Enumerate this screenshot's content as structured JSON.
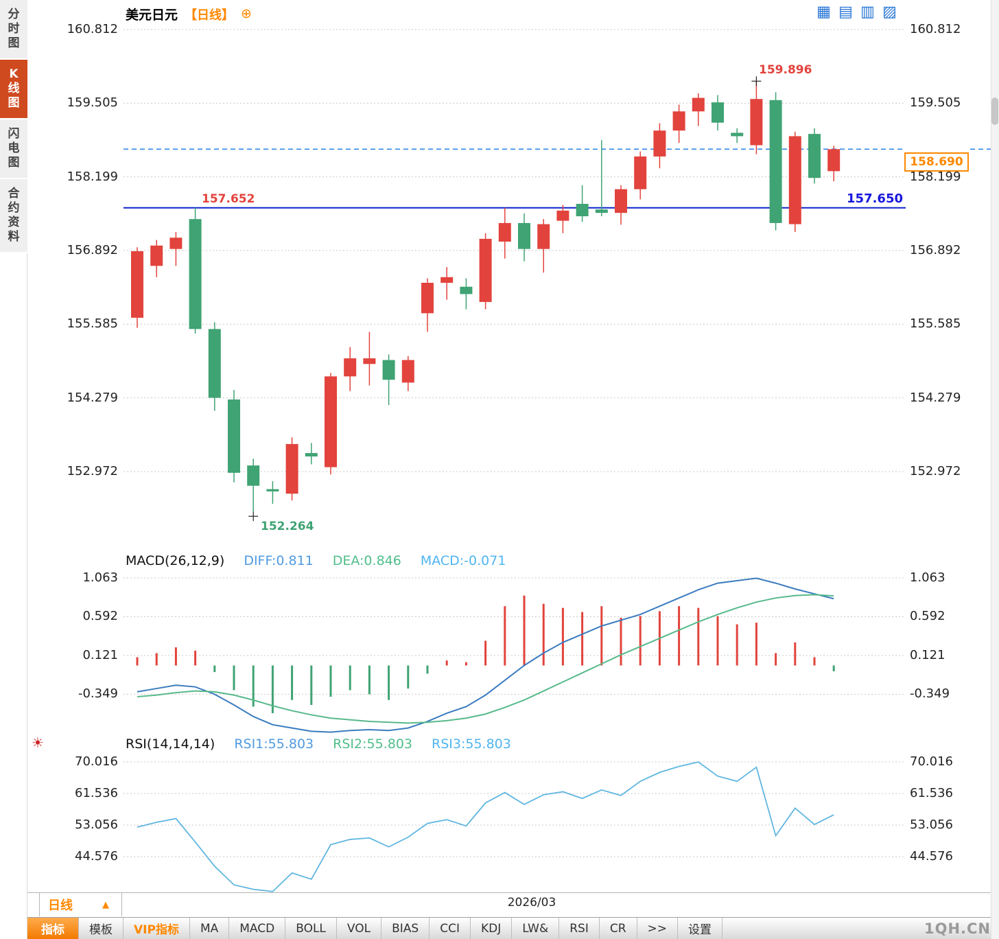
{
  "window": {
    "watermark": "1QH.CN"
  },
  "sidebar": {
    "items": [
      {
        "label": "分时图",
        "active": false
      },
      {
        "label": "K线图",
        "active": true
      },
      {
        "label": "闪电图",
        "active": false
      },
      {
        "label": "合约资料",
        "active": false
      }
    ]
  },
  "header": {
    "title": "美元日元",
    "period": "【日线】"
  },
  "top_icons": [
    "layout-grid-icon",
    "layout-bars-icon",
    "layout-panel-icon",
    "layout-split-icon"
  ],
  "axes": {
    "price": [
      "160.812",
      "159.505",
      "158.199",
      "156.892",
      "155.585",
      "154.279",
      "152.972"
    ],
    "macd": [
      "1.063",
      "0.592",
      "0.121",
      "-0.349"
    ],
    "rsi": [
      "70.016",
      "61.536",
      "53.056",
      "44.576"
    ]
  },
  "annotations": {
    "high": "159.896",
    "swing_high": "157.652",
    "low": "152.264",
    "last_tag": "158.690",
    "hline": "157.650"
  },
  "macd_header": {
    "title": "MACD(26,12,9)",
    "diff": "DIFF:0.811",
    "dea": "DEA:0.846",
    "macd": "MACD:-0.071"
  },
  "rsi_header": {
    "title": "RSI(14,14,14)",
    "rsi1": "RSI1:55.803",
    "rsi2": "RSI2:55.803",
    "rsi3": "RSI3:55.803"
  },
  "footer": {
    "period": "日线",
    "triangle": "▲",
    "date": "2026/03"
  },
  "toolbar": {
    "items": [
      {
        "label": "指标",
        "active": true
      },
      {
        "label": "模板"
      },
      {
        "label": "VIP指标",
        "vip": true
      },
      {
        "label": "MA"
      },
      {
        "label": "MACD"
      },
      {
        "label": "BOLL"
      },
      {
        "label": "VOL"
      },
      {
        "label": "BIAS"
      },
      {
        "label": "CCI"
      },
      {
        "label": "KDJ"
      },
      {
        "label": "LW&"
      },
      {
        "label": "RSI"
      },
      {
        "label": "CR"
      },
      {
        "label": ">>"
      },
      {
        "label": "设置"
      }
    ]
  },
  "chart_data": {
    "type": "candlestick",
    "symbol": "美元日元",
    "period": "日线",
    "date_axis_label": "2026/03",
    "price_ticks": [
      160.812,
      159.505,
      158.199,
      156.892,
      155.585,
      154.279,
      152.972
    ],
    "candles": [
      [
        155.7,
        156.95,
        155.52,
        156.88
      ],
      [
        156.62,
        157.08,
        156.42,
        156.98
      ],
      [
        156.92,
        157.22,
        156.62,
        157.12
      ],
      [
        157.45,
        157.652,
        155.42,
        155.5
      ],
      [
        155.5,
        155.62,
        154.05,
        154.28
      ],
      [
        154.25,
        154.42,
        152.78,
        152.95
      ],
      [
        153.08,
        153.2,
        152.264,
        152.72
      ],
      [
        152.66,
        152.8,
        152.4,
        152.62
      ],
      [
        152.58,
        153.58,
        152.46,
        153.46
      ],
      [
        153.3,
        153.48,
        153.1,
        153.24
      ],
      [
        153.05,
        154.72,
        152.92,
        154.66
      ],
      [
        154.66,
        155.18,
        154.4,
        154.98
      ],
      [
        154.88,
        155.45,
        154.5,
        154.98
      ],
      [
        154.95,
        155.05,
        154.15,
        154.6
      ],
      [
        154.55,
        155.02,
        154.4,
        154.95
      ],
      [
        155.78,
        156.4,
        155.45,
        156.32
      ],
      [
        156.32,
        156.6,
        156.02,
        156.42
      ],
      [
        156.25,
        156.4,
        155.85,
        156.12
      ],
      [
        155.98,
        157.2,
        155.85,
        157.1
      ],
      [
        157.05,
        157.65,
        156.75,
        157.38
      ],
      [
        157.38,
        157.55,
        156.7,
        156.92
      ],
      [
        156.92,
        157.45,
        156.5,
        157.36
      ],
      [
        157.42,
        157.7,
        157.2,
        157.6
      ],
      [
        157.72,
        158.05,
        157.4,
        157.5
      ],
      [
        157.62,
        158.85,
        157.5,
        157.56
      ],
      [
        157.56,
        158.05,
        157.35,
        157.98
      ],
      [
        157.98,
        158.65,
        157.8,
        158.56
      ],
      [
        158.56,
        159.15,
        158.35,
        159.02
      ],
      [
        159.02,
        159.48,
        158.8,
        159.36
      ],
      [
        159.36,
        159.68,
        159.1,
        159.6
      ],
      [
        159.52,
        159.65,
        159.02,
        159.16
      ],
      [
        158.98,
        159.06,
        158.8,
        158.92
      ],
      [
        158.76,
        159.896,
        158.6,
        159.58
      ],
      [
        159.56,
        159.7,
        157.25,
        157.38
      ],
      [
        157.36,
        159.0,
        157.22,
        158.92
      ],
      [
        158.96,
        159.06,
        158.08,
        158.18
      ],
      [
        158.3,
        158.75,
        158.12,
        158.69
      ]
    ],
    "lines": {
      "horizontal_solid": 157.65,
      "horizontal_dashed": 158.69
    },
    "markers": {
      "high": 159.896,
      "high_index": 32,
      "low": 152.264,
      "low_index": 6,
      "swing_high": 157.652,
      "last": 158.69
    },
    "macd": {
      "params": [
        26,
        12,
        9
      ],
      "diff_last": 0.811,
      "dea_last": 0.846,
      "macd_last": -0.071,
      "ticks": [
        1.063,
        0.592,
        0.121,
        -0.349
      ],
      "diff": [
        -0.32,
        -0.28,
        -0.24,
        -0.26,
        -0.35,
        -0.48,
        -0.62,
        -0.72,
        -0.76,
        -0.8,
        -0.81,
        -0.79,
        -0.78,
        -0.79,
        -0.76,
        -0.68,
        -0.58,
        -0.5,
        -0.36,
        -0.18,
        0.0,
        0.15,
        0.28,
        0.38,
        0.48,
        0.55,
        0.62,
        0.72,
        0.82,
        0.92,
        1.0,
        1.03,
        1.06,
        1.0,
        0.93,
        0.87,
        0.811
      ],
      "dea": [
        -0.38,
        -0.36,
        -0.33,
        -0.31,
        -0.32,
        -0.36,
        -0.42,
        -0.49,
        -0.55,
        -0.6,
        -0.64,
        -0.66,
        -0.68,
        -0.69,
        -0.7,
        -0.69,
        -0.67,
        -0.64,
        -0.59,
        -0.51,
        -0.42,
        -0.31,
        -0.2,
        -0.09,
        0.02,
        0.13,
        0.23,
        0.33,
        0.43,
        0.53,
        0.62,
        0.7,
        0.77,
        0.82,
        0.85,
        0.86,
        0.846
      ],
      "hist": [
        0.1,
        0.15,
        0.22,
        0.18,
        -0.08,
        -0.3,
        -0.5,
        -0.58,
        -0.42,
        -0.48,
        -0.38,
        -0.3,
        -0.35,
        -0.42,
        -0.28,
        -0.1,
        0.06,
        0.04,
        0.3,
        0.72,
        0.85,
        0.75,
        0.7,
        0.65,
        0.72,
        0.58,
        0.6,
        0.66,
        0.72,
        0.7,
        0.6,
        0.5,
        0.52,
        0.15,
        0.28,
        0.1,
        -0.071
      ]
    },
    "rsi": {
      "params": [
        14,
        14,
        14
      ],
      "last": 55.803,
      "ticks": [
        70.016,
        61.536,
        53.056,
        44.576
      ],
      "values": [
        52.5,
        53.8,
        54.8,
        48.5,
        42.0,
        37.0,
        35.8,
        35.2,
        40.2,
        38.5,
        47.8,
        49.2,
        49.6,
        47.2,
        49.8,
        53.5,
        54.5,
        52.8,
        59.0,
        61.8,
        58.6,
        61.2,
        62.0,
        60.2,
        62.5,
        61.0,
        64.8,
        67.2,
        68.8,
        70.0,
        66.2,
        64.8,
        68.6,
        50.2,
        57.6,
        53.2,
        55.803
      ],
      "line_color": "#5fb6e0"
    },
    "colors": {
      "up": "#e2433c",
      "down": "#3fa373",
      "diff_line": "#3a7bbf",
      "dea_line": "#57b98a",
      "rsi_line": "#5fb6e0",
      "solid_hline": "#0a23cc",
      "dashed_hline": "#2f86e8",
      "tag": "#ff8800"
    }
  }
}
